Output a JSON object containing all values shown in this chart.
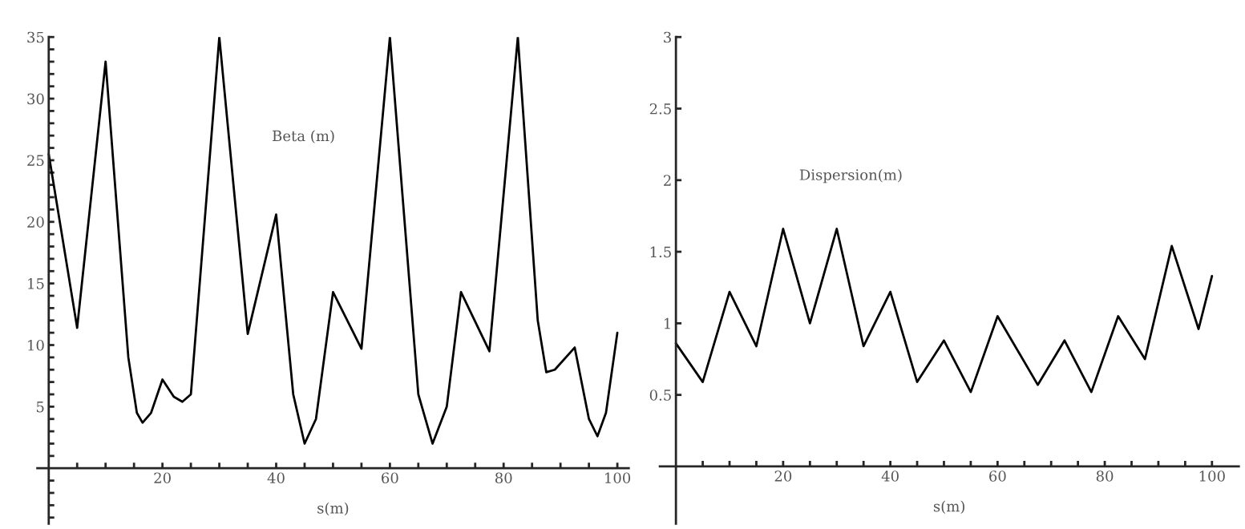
{
  "chart_data": [
    {
      "type": "line",
      "ylabel": "Beta (m)",
      "xlabel": "s(m)",
      "xlim": [
        -2,
        102
      ],
      "ylim": [
        -4.5,
        35
      ],
      "xticks": [
        {
          "value": 5,
          "label": null
        },
        {
          "value": 10,
          "label": null
        },
        {
          "value": 15,
          "label": null
        },
        20,
        {
          "value": 25,
          "label": null
        },
        {
          "value": 30,
          "label": null
        },
        {
          "value": 35,
          "label": null
        },
        40,
        {
          "value": 45,
          "label": null
        },
        {
          "value": 50,
          "label": null
        },
        {
          "value": 55,
          "label": null
        },
        60,
        {
          "value": 65,
          "label": null
        },
        {
          "value": 70,
          "label": null
        },
        {
          "value": 75,
          "label": null
        },
        80,
        {
          "value": 85,
          "label": null
        },
        {
          "value": 90,
          "label": null
        },
        {
          "value": 95,
          "label": null
        },
        100
      ],
      "yticks": [
        {
          "value": -4,
          "label": null
        },
        {
          "value": -3,
          "label": null
        },
        {
          "value": -2,
          "label": null
        },
        {
          "value": -1,
          "label": null
        },
        {
          "value": 1,
          "label": null
        },
        {
          "value": 2,
          "label": null
        },
        {
          "value": 3,
          "label": null
        },
        {
          "value": 4,
          "label": null
        },
        5,
        {
          "value": 6,
          "label": null
        },
        {
          "value": 7,
          "label": null
        },
        {
          "value": 8,
          "label": null
        },
        {
          "value": 9,
          "label": null
        },
        10,
        {
          "value": 11,
          "label": null
        },
        {
          "value": 12,
          "label": null
        },
        {
          "value": 13,
          "label": null
        },
        {
          "value": 14,
          "label": null
        },
        15,
        {
          "value": 16,
          "label": null
        },
        {
          "value": 17,
          "label": null
        },
        {
          "value": 18,
          "label": null
        },
        {
          "value": 19,
          "label": null
        },
        20,
        {
          "value": 21,
          "label": null
        },
        {
          "value": 22,
          "label": null
        },
        {
          "value": 23,
          "label": null
        },
        {
          "value": 24,
          "label": null
        },
        25,
        {
          "value": 26,
          "label": null
        },
        {
          "value": 27,
          "label": null
        },
        {
          "value": 28,
          "label": null
        },
        {
          "value": 29,
          "label": null
        },
        30,
        {
          "value": 31,
          "label": null
        },
        {
          "value": 32,
          "label": null
        },
        {
          "value": 33,
          "label": null
        },
        {
          "value": 34,
          "label": null
        },
        35
      ],
      "grid": false,
      "legend": false,
      "series": [
        {
          "color": "#000000",
          "x": [
            0,
            5,
            10,
            14,
            15.5,
            16.5,
            18,
            20,
            22,
            23.5,
            25,
            30,
            35,
            40,
            43,
            45,
            47,
            50,
            55,
            60,
            65,
            67.5,
            70,
            72.5,
            77.5,
            82.5,
            86,
            87.5,
            89,
            92.5,
            95,
            96.5,
            98,
            100
          ],
          "values": [
            25.5,
            11.4,
            33,
            9,
            4.5,
            3.7,
            4.5,
            7.2,
            5.8,
            5.4,
            6,
            35,
            10.9,
            20.6,
            6,
            2,
            4,
            14.3,
            9.7,
            35,
            6,
            2,
            5,
            14.3,
            9.5,
            35,
            12,
            7.8,
            8,
            9.8,
            4,
            2.6,
            4.5,
            11
          ]
        }
      ]
    },
    {
      "type": "line",
      "ylabel": "Dispersion(m)",
      "xlabel": "s(m)",
      "xlim": [
        -3,
        105
      ],
      "ylim": [
        -0.4,
        3
      ],
      "xticks": [
        {
          "value": 5,
          "label": null
        },
        {
          "value": 10,
          "label": null
        },
        {
          "value": 15,
          "label": null
        },
        20,
        {
          "value": 25,
          "label": null
        },
        {
          "value": 30,
          "label": null
        },
        {
          "value": 35,
          "label": null
        },
        40,
        {
          "value": 45,
          "label": null
        },
        {
          "value": 50,
          "label": null
        },
        {
          "value": 55,
          "label": null
        },
        60,
        {
          "value": 65,
          "label": null
        },
        {
          "value": 70,
          "label": null
        },
        {
          "value": 75,
          "label": null
        },
        80,
        {
          "value": 85,
          "label": null
        },
        {
          "value": 90,
          "label": null
        },
        {
          "value": 95,
          "label": null
        },
        100
      ],
      "yticks": [
        0.5,
        1,
        1.5,
        2,
        2.5,
        3
      ],
      "grid": false,
      "legend": false,
      "series": [
        {
          "color": "#000000",
          "x": [
            0,
            5,
            10,
            15,
            20,
            25,
            30,
            35,
            40,
            45,
            50,
            55,
            60,
            67.5,
            72.5,
            77.5,
            82.5,
            87.5,
            92.5,
            97.5,
            100
          ],
          "values": [
            0.86,
            0.59,
            1.22,
            0.84,
            1.66,
            1.0,
            1.66,
            0.84,
            1.22,
            0.59,
            0.88,
            0.52,
            1.05,
            0.57,
            0.88,
            0.52,
            1.05,
            0.75,
            1.54,
            0.96,
            1.33
          ]
        }
      ]
    }
  ]
}
